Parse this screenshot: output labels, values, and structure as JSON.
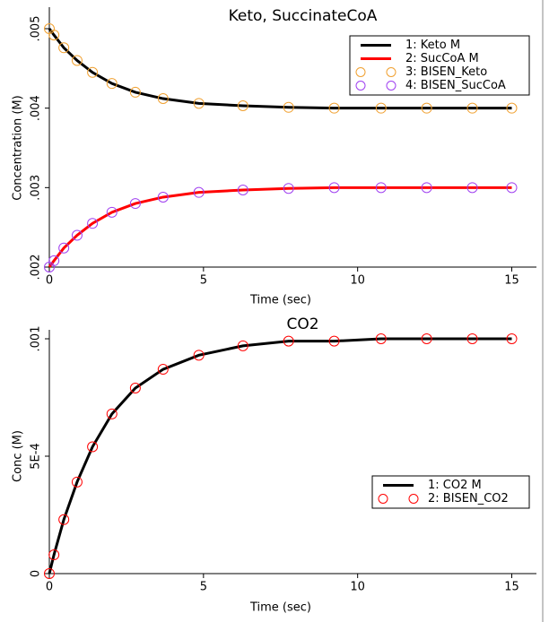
{
  "chart_data": [
    {
      "type": "line",
      "title": "Keto, SuccinateCoA",
      "xlabel": "Time (sec)",
      "ylabel": "Concentration (M)",
      "x": [
        0,
        0.15,
        0.47,
        0.9,
        1.4,
        2.03,
        2.79,
        3.69,
        4.85,
        6.28,
        7.76,
        9.24,
        10.76,
        12.24,
        13.72,
        15
      ],
      "xlim": [
        0,
        15.8
      ],
      "xticks": [
        0,
        5,
        10,
        15
      ],
      "ylim": [
        0.002,
        0.005
      ],
      "yticks": [
        {
          "value": 0.002,
          "label": ".002"
        },
        {
          "value": 0.003,
          "label": ".003"
        },
        {
          "value": 0.004,
          "label": ".004"
        },
        {
          "value": 0.005,
          "label": ".005"
        }
      ],
      "legend": "upper right",
      "series": [
        {
          "name": "1: Keto M",
          "color": "#000000",
          "marker": "line",
          "values": [
            0.005,
            0.00492,
            0.00476,
            0.0046,
            0.00445,
            0.00431,
            0.0042,
            0.00412,
            0.00406,
            0.00403,
            0.00401,
            0.004,
            0.004,
            0.004,
            0.004,
            0.004
          ]
        },
        {
          "name": "2: SucCoA M",
          "color": "#ff0000",
          "marker": "line",
          "values": [
            0.002,
            0.00208,
            0.00224,
            0.0024,
            0.00255,
            0.00269,
            0.0028,
            0.00288,
            0.00294,
            0.00297,
            0.00299,
            0.003,
            0.003,
            0.003,
            0.003,
            0.003
          ]
        },
        {
          "name": "3: BISEN_Keto",
          "color": "#f0a030",
          "marker": "circle",
          "values": [
            0.005,
            0.00492,
            0.00476,
            0.0046,
            0.00445,
            0.00431,
            0.0042,
            0.00412,
            0.00406,
            0.00403,
            0.00401,
            0.004,
            0.004,
            0.004,
            0.004,
            0.004
          ]
        },
        {
          "name": "4: BISEN_SucCoA",
          "color": "#a040f0",
          "marker": "circle",
          "values": [
            0.002,
            0.00208,
            0.00224,
            0.0024,
            0.00255,
            0.00269,
            0.0028,
            0.00288,
            0.00294,
            0.00297,
            0.00299,
            0.003,
            0.003,
            0.003,
            0.003,
            0.003
          ]
        }
      ]
    },
    {
      "type": "line",
      "title": "CO2",
      "xlabel": "Time (sec)",
      "ylabel": "Conc (M)",
      "x": [
        0,
        0.15,
        0.47,
        0.9,
        1.4,
        2.03,
        2.79,
        3.69,
        4.85,
        6.28,
        7.76,
        9.24,
        10.76,
        12.24,
        13.72,
        15
      ],
      "xlim": [
        0,
        15.8
      ],
      "xticks": [
        0,
        5,
        10,
        15
      ],
      "ylim": [
        0,
        0.001
      ],
      "yticks": [
        0,
        {
          "value": 0.0005,
          "label": "5E-4"
        },
        {
          "value": 0.001,
          "label": ".001"
        }
      ],
      "legend": "center right",
      "series": [
        {
          "name": "1: CO2 M",
          "color": "#000000",
          "marker": "line",
          "values": [
            0,
            8e-05,
            0.00023,
            0.00039,
            0.00054,
            0.00068,
            0.00079,
            0.00087,
            0.00093,
            0.00097,
            0.00099,
            0.00099,
            0.001,
            0.001,
            0.001,
            0.001
          ]
        },
        {
          "name": "2: BISEN_CO2",
          "color": "#ff0000",
          "marker": "circle",
          "values": [
            0,
            8e-05,
            0.00023,
            0.00039,
            0.00054,
            0.00068,
            0.00079,
            0.00087,
            0.00093,
            0.00097,
            0.00099,
            0.00099,
            0.001,
            0.001,
            0.001,
            0.001
          ]
        }
      ]
    }
  ]
}
